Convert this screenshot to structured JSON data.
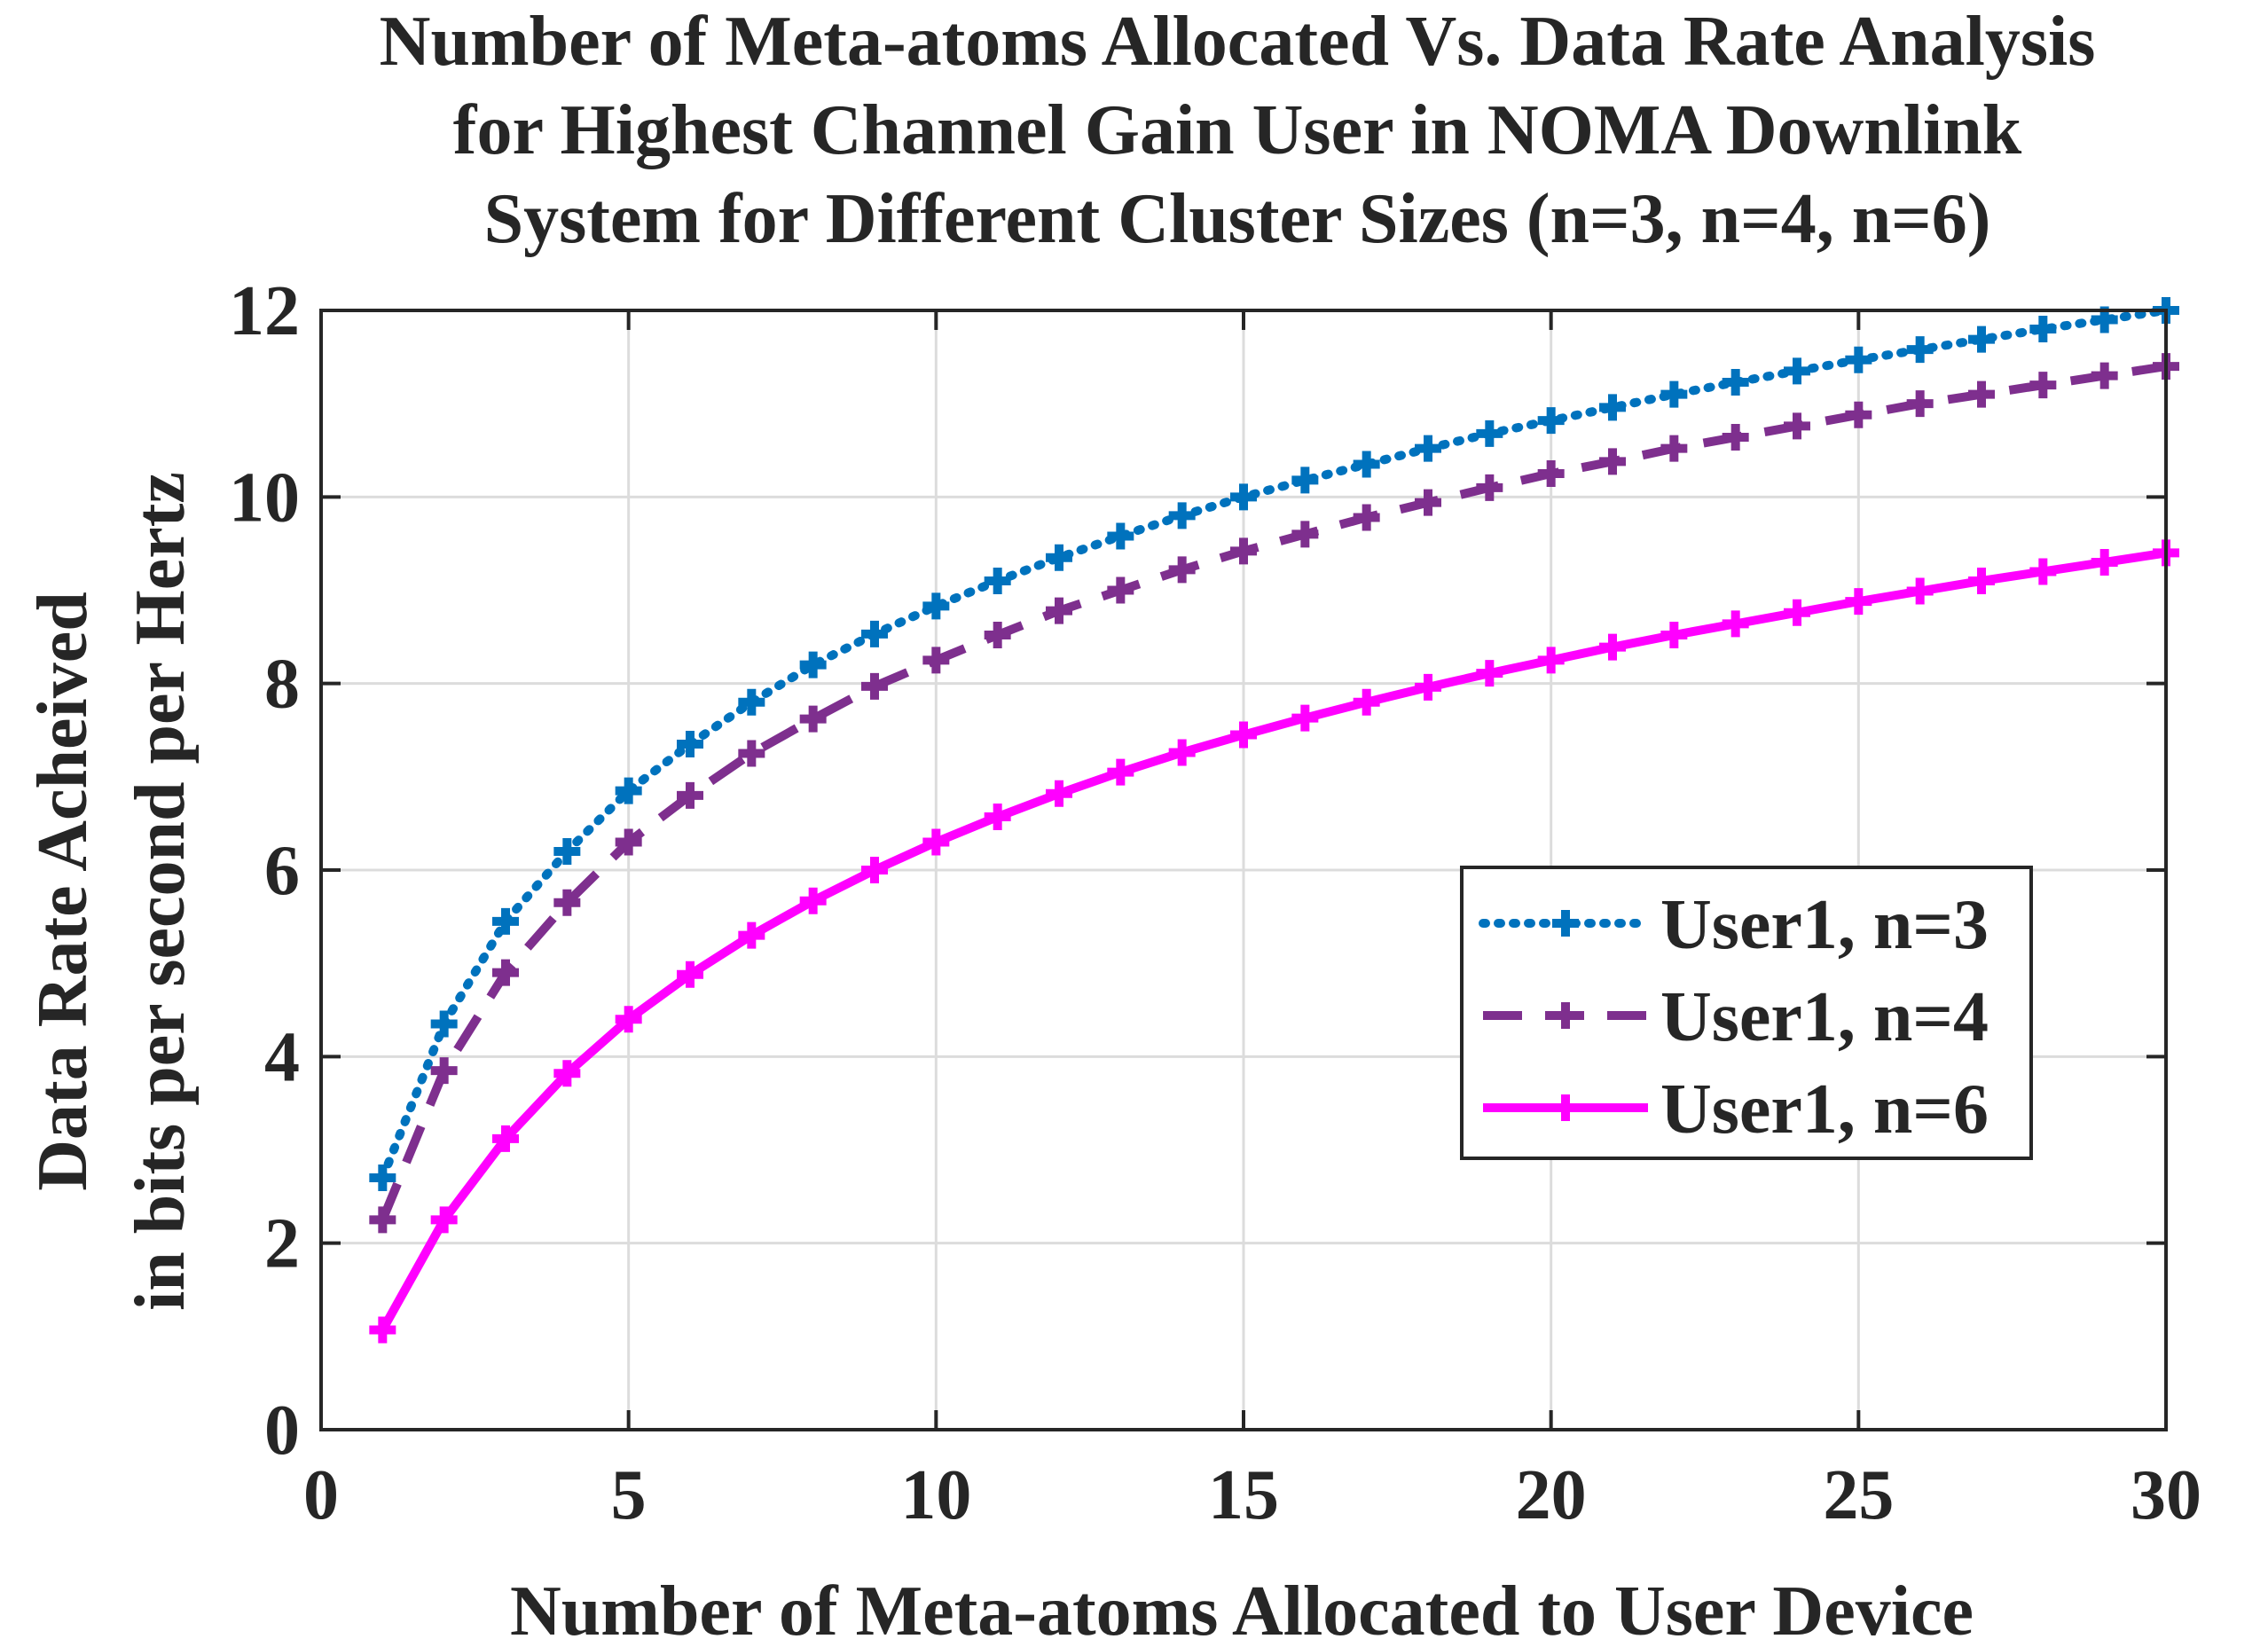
{
  "chart_data": {
    "type": "line",
    "title": [
      "Number of Meta-atoms Allocated Vs. Data Rate Analysis",
      "for Highest Channel Gain User in NOMA Downlink",
      "System for Different Cluster Sizes (n=3, n=4, n=6)"
    ],
    "xlabel": "Number of Meta-atoms Allocated to User Device",
    "ylabel": [
      "Data Rate Acheived",
      "in bits per second per Hertz"
    ],
    "xlim": [
      0,
      30
    ],
    "ylim": [
      0,
      12
    ],
    "xticks": [
      0,
      5,
      10,
      15,
      20,
      25,
      30
    ],
    "yticks": [
      0,
      2,
      4,
      6,
      8,
      10,
      12
    ],
    "grid": true,
    "legend_position": "center-right",
    "x": [
      1,
      2,
      3,
      4,
      5,
      6,
      7,
      8,
      9,
      10,
      11,
      12,
      13,
      14,
      15,
      16,
      17,
      18,
      19,
      20,
      21,
      22,
      23,
      24,
      25,
      26,
      27,
      28,
      29,
      30
    ],
    "series": [
      {
        "name": "User1, n=3",
        "color": "#0072BD",
        "line_style": "dotted",
        "marker": "plus",
        "values": [
          2.7,
          4.35,
          5.45,
          6.2,
          6.85,
          7.35,
          7.8,
          8.2,
          8.53,
          8.83,
          9.1,
          9.35,
          9.58,
          9.8,
          10.0,
          10.18,
          10.35,
          10.52,
          10.68,
          10.82,
          10.96,
          11.1,
          11.23,
          11.35,
          11.47,
          11.58,
          11.69,
          11.8,
          11.9,
          12.0
        ]
      },
      {
        "name": "User1, n=4",
        "color": "#7E2F8E",
        "line_style": "dashed",
        "marker": "plus",
        "values": [
          2.25,
          3.85,
          4.9,
          5.65,
          6.3,
          6.8,
          7.25,
          7.62,
          7.97,
          8.25,
          8.52,
          8.78,
          9.0,
          9.22,
          9.42,
          9.6,
          9.78,
          9.94,
          10.1,
          10.25,
          10.38,
          10.52,
          10.64,
          10.76,
          10.88,
          11.0,
          11.1,
          11.2,
          11.3,
          11.4
        ]
      },
      {
        "name": "User1, n=6",
        "color": "#FF00FF",
        "line_style": "solid",
        "marker": "plus",
        "values": [
          1.07,
          2.25,
          3.12,
          3.82,
          4.4,
          4.88,
          5.3,
          5.67,
          6.0,
          6.3,
          6.57,
          6.82,
          7.05,
          7.26,
          7.45,
          7.63,
          7.8,
          7.96,
          8.11,
          8.25,
          8.39,
          8.52,
          8.64,
          8.76,
          8.88,
          8.99,
          9.1,
          9.2,
          9.3,
          9.4
        ]
      }
    ]
  }
}
